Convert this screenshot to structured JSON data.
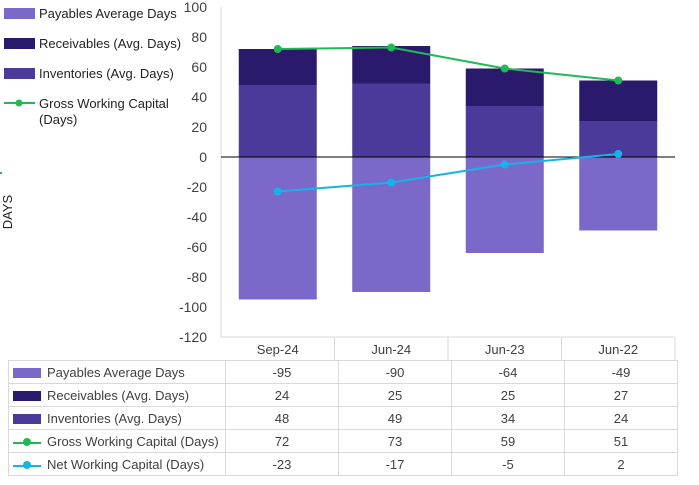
{
  "chart_data": {
    "type": "bar",
    "stacked": true,
    "categories": [
      "Sep-24",
      "Jun-24",
      "Jun-23",
      "Jun-22"
    ],
    "ylabel": "DAYS",
    "ylim": [
      -120,
      100
    ],
    "yticks": [
      100,
      80,
      60,
      40,
      20,
      0,
      -20,
      -40,
      -60,
      -80,
      -100,
      -120
    ],
    "gridlines": false,
    "legend_position": "top-left",
    "series": [
      {
        "name": "Payables Average Days",
        "kind": "bar",
        "color": "#7b68c8",
        "values": [
          -95,
          -90,
          -64,
          -49
        ]
      },
      {
        "name": "Receivables (Avg. Days)",
        "kind": "bar",
        "color": "#2b1a6b",
        "values": [
          24,
          25,
          25,
          27
        ]
      },
      {
        "name": "Inventories (Avg. Days)",
        "kind": "bar",
        "color": "#4c3a9a",
        "values": [
          48,
          49,
          34,
          24
        ]
      },
      {
        "name": "Gross Working Capital (Days)",
        "kind": "line",
        "color": "#1fba55",
        "values": [
          72,
          73,
          59,
          51
        ]
      },
      {
        "name": "Net Working Capital (Days)",
        "kind": "line",
        "color": "#15b4e8",
        "values": [
          -23,
          -17,
          -5,
          2
        ]
      }
    ],
    "legend_labels": [
      {
        "lines": [
          "Payables Average Days"
        ],
        "series": 0
      },
      {
        "lines": [
          "Receivables (Avg. Days)"
        ],
        "series": 1
      },
      {
        "lines": [
          "Inventories (Avg. Days)"
        ],
        "series": 2
      },
      {
        "lines": [
          "Gross Working Capital",
          "(Days)"
        ],
        "series": 3
      }
    ]
  }
}
